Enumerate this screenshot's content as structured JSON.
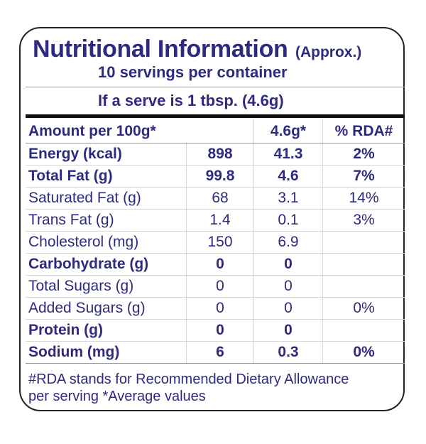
{
  "title": {
    "main": "Nutritional Information",
    "approx": "(Approx.)"
  },
  "servings_line": "10 servings per container",
  "serve_line": "If a serve is 1 tbsp. (4.6g)",
  "header": {
    "col1": "Amount per 100g*",
    "col2": "",
    "col3": "4.6g*",
    "col4": "% RDA#"
  },
  "rows": [
    {
      "name": "Energy (kcal)",
      "per100": "898",
      "perServe": "41.3",
      "rda": "2%",
      "bold": true
    },
    {
      "name": "Total Fat (g)",
      "per100": "99.8",
      "perServe": "4.6",
      "rda": "7%",
      "bold": true
    },
    {
      "name": "Saturated Fat (g)",
      "per100": "68",
      "perServe": "3.1",
      "rda": "14%",
      "bold": false
    },
    {
      "name": "Trans Fat (g)",
      "per100": "1.4",
      "perServe": "0.1",
      "rda": "3%",
      "bold": false
    },
    {
      "name": "Cholesterol (mg)",
      "per100": "150",
      "perServe": "6.9",
      "rda": "",
      "bold": false
    },
    {
      "name": "Carbohydrate (g)",
      "per100": "0",
      "perServe": "0",
      "rda": "",
      "bold": true
    },
    {
      "name": "Total Sugars (g)",
      "per100": "0",
      "perServe": "0",
      "rda": "",
      "bold": false
    },
    {
      "name": "Added Sugars (g)",
      "per100": "0",
      "perServe": "0",
      "rda": "0%",
      "bold": false
    },
    {
      "name": "Protein (g)",
      "per100": "0",
      "perServe": "0",
      "rda": "",
      "bold": true
    },
    {
      "name": "Sodium (mg)",
      "per100": "6",
      "perServe": "0.3",
      "rda": "0%",
      "bold": true
    }
  ],
  "footnote": {
    "line1": "#RDA stands for Recommended Dietary Allowance",
    "line2": "per serving *Average values"
  },
  "colors": {
    "text": "#2e2a80",
    "border": "#222222",
    "rule": "#111111"
  }
}
